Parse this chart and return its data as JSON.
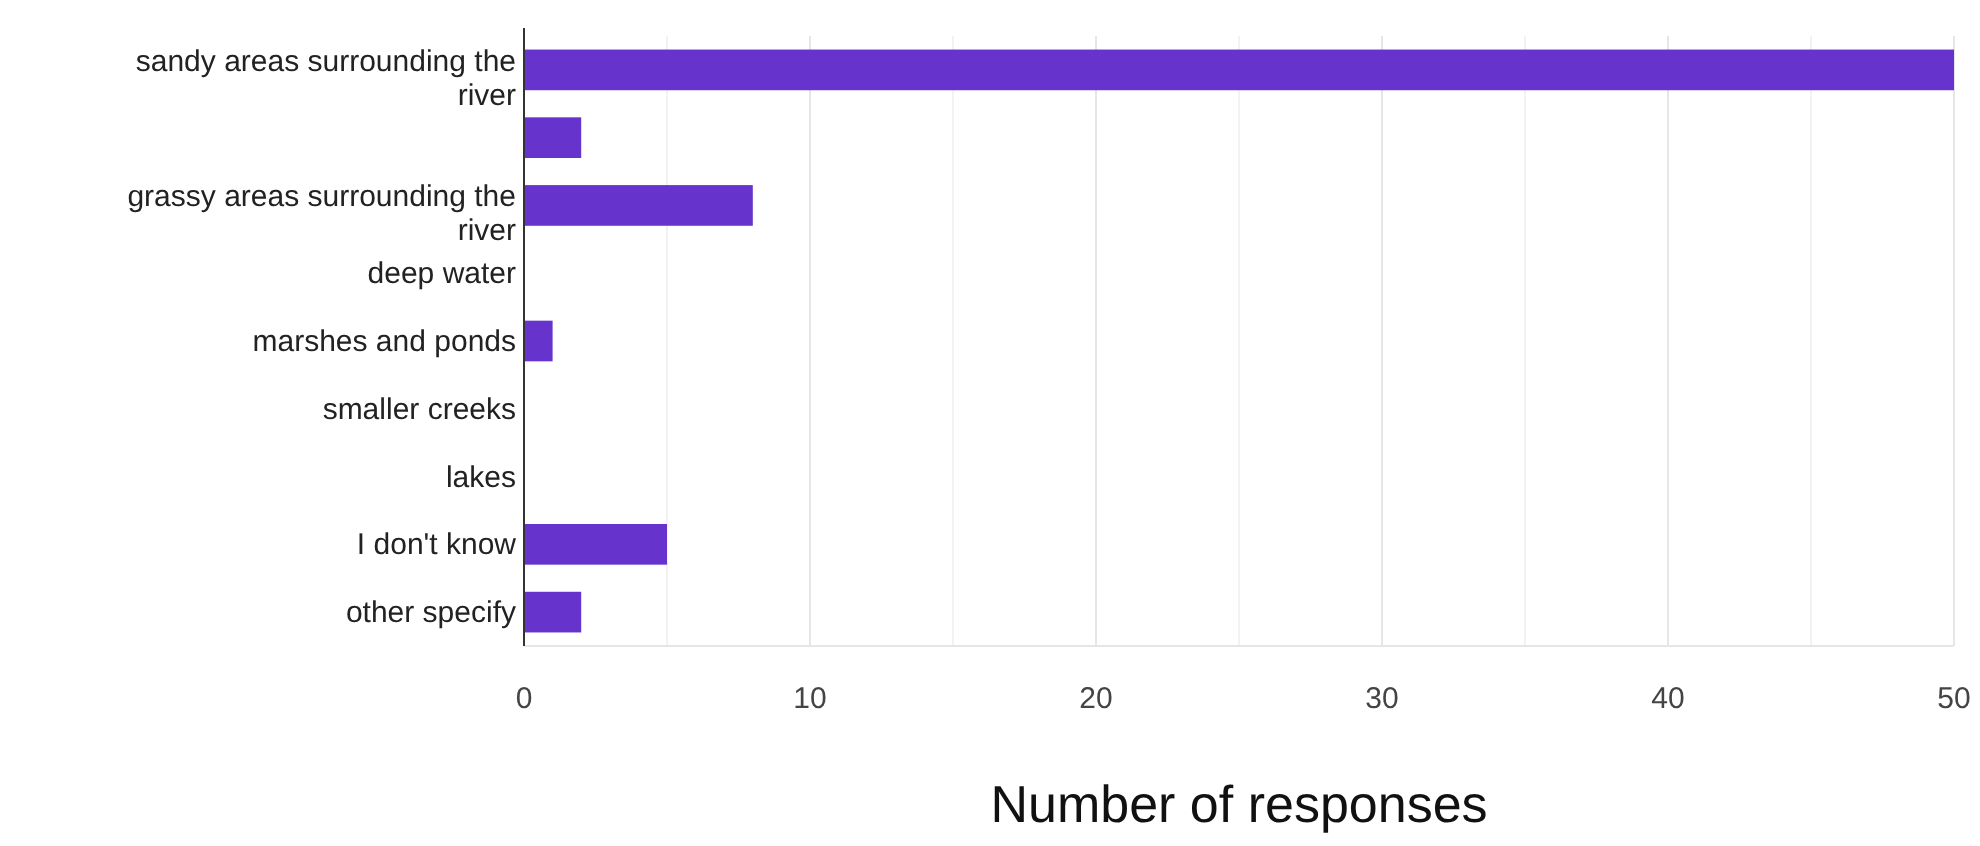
{
  "chart_data": {
    "type": "bar",
    "orientation": "horizontal",
    "xlabel": "Number of responses",
    "categories": [
      "sandy areas surrounding the river",
      null,
      "grassy areas surrounding the river",
      "deep water",
      "marshes and ponds",
      "smaller creeks",
      "lakes",
      "I don't know",
      "other specify"
    ],
    "values": [
      50,
      2,
      8,
      0,
      1,
      0,
      0,
      5,
      2
    ],
    "color": "#6633cc",
    "xlim": [
      0,
      50
    ],
    "xticks": [
      0,
      {
        "value": 5,
        "label": null
      },
      10,
      {
        "value": 15,
        "label": null
      },
      20,
      {
        "value": 25,
        "label": null
      },
      30,
      {
        "value": 35,
        "label": null
      },
      40,
      {
        "value": 45,
        "label": null
      },
      50
    ],
    "grid": "x"
  }
}
